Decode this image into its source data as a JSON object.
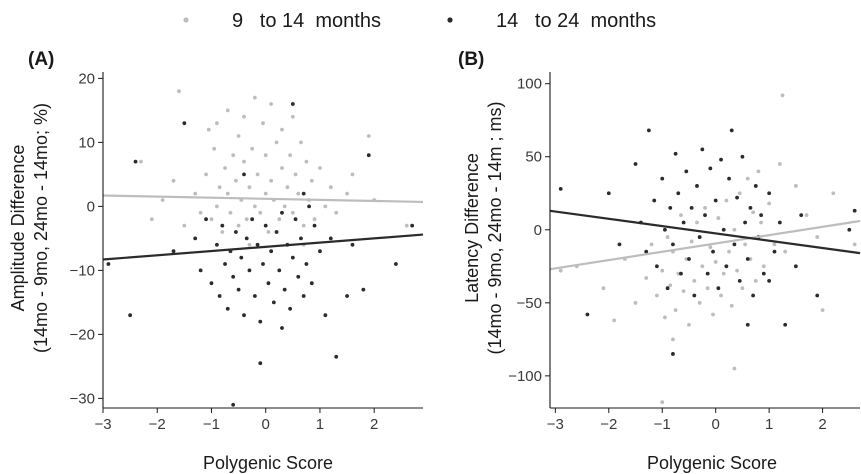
{
  "legend": {
    "items": [
      {
        "label": "9   to 14  months",
        "color": "#bdbdbd"
      },
      {
        "label": "14   to 24  months",
        "color": "#2b2b2b"
      }
    ]
  },
  "chart_data": [
    {
      "type": "scatter",
      "panel_label": "(A)",
      "xlabel": "Polygenic Score",
      "ylabel_lines": [
        "Amplitude Difference",
        "(14mo - 9mo, 24mo - 14mo; %)"
      ],
      "xlim": [
        -3,
        2.9
      ],
      "ylim": [
        -31.5,
        21
      ],
      "xticks": [
        -3,
        -2,
        -1,
        0,
        1,
        2
      ],
      "yticks": [
        -30,
        -20,
        -10,
        0,
        10,
        20
      ],
      "grid": false,
      "legend_position": "top",
      "series": [
        {
          "name": "9   to 14  months",
          "color": "#bdbdbd",
          "fit_line": {
            "x": [
              -3,
              2.9
            ],
            "y": [
              1.7,
              0.7
            ]
          },
          "points": [
            [
              -1.9,
              1
            ],
            [
              -1.7,
              4
            ],
            [
              -1.5,
              -3
            ],
            [
              -1.3,
              2
            ],
            [
              -1.2,
              -1
            ],
            [
              -1.1,
              5
            ],
            [
              -1.05,
              12
            ],
            [
              -1,
              -2
            ],
            [
              -0.95,
              9
            ],
            [
              -0.9,
              13
            ],
            [
              -0.9,
              0
            ],
            [
              -0.85,
              3
            ],
            [
              -0.8,
              -4
            ],
            [
              -0.75,
              6
            ],
            [
              -0.7,
              15
            ],
            [
              -0.7,
              2
            ],
            [
              -0.65,
              -1
            ],
            [
              -0.6,
              8
            ],
            [
              -0.55,
              4
            ],
            [
              -0.5,
              11
            ],
            [
              -0.5,
              -3
            ],
            [
              -0.45,
              1
            ],
            [
              -0.4,
              7
            ],
            [
              -0.4,
              14
            ],
            [
              -0.35,
              -2
            ],
            [
              -0.3,
              3
            ],
            [
              -0.25,
              9
            ],
            [
              -0.2,
              0
            ],
            [
              -0.2,
              17
            ],
            [
              -0.15,
              5
            ],
            [
              -0.1,
              -1
            ],
            [
              -0.05,
              13
            ],
            [
              0,
              2
            ],
            [
              0,
              8
            ],
            [
              0.05,
              -4
            ],
            [
              0.1,
              16
            ],
            [
              0.1,
              4
            ],
            [
              0.15,
              1
            ],
            [
              0.2,
              10
            ],
            [
              0.25,
              -2
            ],
            [
              0.3,
              6
            ],
            [
              0.3,
              12
            ],
            [
              0.35,
              0
            ],
            [
              0.4,
              3
            ],
            [
              0.45,
              8
            ],
            [
              0.5,
              -1
            ],
            [
              0.5,
              14
            ],
            [
              0.55,
              5
            ],
            [
              0.6,
              2
            ],
            [
              0.65,
              10
            ],
            [
              0.7,
              -3
            ],
            [
              0.75,
              7
            ],
            [
              0.8,
              1
            ],
            [
              0.85,
              4
            ],
            [
              0.9,
              -2
            ],
            [
              1,
              6
            ],
            [
              1.1,
              0
            ],
            [
              1.2,
              3
            ],
            [
              1.3,
              -1
            ],
            [
              1.5,
              2
            ],
            [
              1.6,
              5
            ],
            [
              1.9,
              11
            ],
            [
              2,
              1
            ],
            [
              -1.6,
              18
            ],
            [
              -2.1,
              -2
            ],
            [
              -0.3,
              -6
            ],
            [
              0.7,
              -6
            ],
            [
              -2.3,
              7
            ],
            [
              2.6,
              -3
            ]
          ]
        },
        {
          "name": "14   to 24  months",
          "color": "#2b2b2b",
          "fit_line": {
            "x": [
              -3,
              2.9
            ],
            "y": [
              -8.3,
              -4.4
            ]
          },
          "points": [
            [
              -2.9,
              -9
            ],
            [
              -2.5,
              -17
            ],
            [
              -2.4,
              7
            ],
            [
              -1.7,
              -7
            ],
            [
              -1.5,
              13
            ],
            [
              -1.3,
              -5
            ],
            [
              -1.2,
              -10
            ],
            [
              -1.1,
              -2
            ],
            [
              -1,
              -12
            ],
            [
              -0.9,
              -6
            ],
            [
              -0.85,
              -14
            ],
            [
              -0.8,
              -3
            ],
            [
              -0.75,
              -9
            ],
            [
              -0.7,
              -16
            ],
            [
              -0.65,
              -7
            ],
            [
              -0.6,
              -11
            ],
            [
              -0.55,
              -4
            ],
            [
              -0.5,
              -13
            ],
            [
              -0.45,
              -8
            ],
            [
              -0.4,
              -17
            ],
            [
              -0.35,
              -5
            ],
            [
              -0.3,
              -10
            ],
            [
              -0.25,
              -2
            ],
            [
              -0.2,
              -14
            ],
            [
              -0.15,
              -6
            ],
            [
              -0.1,
              -18
            ],
            [
              -0.05,
              -9
            ],
            [
              0,
              -3
            ],
            [
              0.05,
              -12
            ],
            [
              0.1,
              -7
            ],
            [
              0.15,
              -15
            ],
            [
              0.2,
              -4
            ],
            [
              0.25,
              -10
            ],
            [
              0.3,
              -1
            ],
            [
              0.35,
              -13
            ],
            [
              0.4,
              -6
            ],
            [
              0.45,
              -16
            ],
            [
              0.5,
              -8
            ],
            [
              0.55,
              -2
            ],
            [
              0.6,
              -11
            ],
            [
              0.65,
              -5
            ],
            [
              0.7,
              -14
            ],
            [
              0.75,
              -9
            ],
            [
              0.8,
              0
            ],
            [
              0.85,
              -12
            ],
            [
              0.9,
              -3
            ],
            [
              1,
              -7
            ],
            [
              1.1,
              -17
            ],
            [
              1.2,
              -5
            ],
            [
              1.3,
              -23.5
            ],
            [
              1.5,
              -14
            ],
            [
              1.6,
              -6
            ],
            [
              1.8,
              -13
            ],
            [
              1.9,
              8
            ],
            [
              2.4,
              -9
            ],
            [
              2.7,
              -3
            ],
            [
              -0.6,
              -31
            ],
            [
              -0.1,
              -24.5
            ],
            [
              0.5,
              16
            ],
            [
              0.7,
              2
            ],
            [
              -0.4,
              5
            ],
            [
              0.3,
              -19
            ]
          ]
        }
      ]
    },
    {
      "type": "scatter",
      "panel_label": "(B)",
      "xlabel": "Polygenic Score",
      "ylabel_lines": [
        "Latency Difference",
        "(14mo - 9mo, 24mo - 14m ; ms)"
      ],
      "xlim": [
        -3.1,
        2.7
      ],
      "ylim": [
        -122,
        108
      ],
      "xticks": [
        -3,
        -2,
        -1,
        0,
        1,
        2
      ],
      "yticks": [
        -100,
        -50,
        0,
        50,
        100
      ],
      "grid": false,
      "legend_position": "top",
      "series": [
        {
          "name": "9   to 14  months",
          "color": "#bdbdbd",
          "fit_line": {
            "x": [
              -3.1,
              2.7
            ],
            "y": [
              -27,
              6
            ]
          },
          "points": [
            [
              -2.9,
              -28
            ],
            [
              -2.6,
              -25
            ],
            [
              -2.1,
              -40
            ],
            [
              -1.9,
              -62
            ],
            [
              -1.7,
              -20
            ],
            [
              -1.5,
              -50
            ],
            [
              -1.3,
              -33
            ],
            [
              -1.2,
              -10
            ],
            [
              -1.1,
              -45
            ],
            [
              -1,
              -28
            ],
            [
              -0.95,
              -60
            ],
            [
              -0.9,
              -5
            ],
            [
              -0.85,
              -38
            ],
            [
              -0.8,
              -15
            ],
            [
              -0.75,
              -55
            ],
            [
              -0.7,
              -30
            ],
            [
              -0.65,
              10
            ],
            [
              -0.6,
              -42
            ],
            [
              -0.55,
              -20
            ],
            [
              -0.5,
              -65
            ],
            [
              -0.45,
              -8
            ],
            [
              -0.4,
              -35
            ],
            [
              -0.35,
              5
            ],
            [
              -0.3,
              -50
            ],
            [
              -0.25,
              -25
            ],
            [
              -0.2,
              15
            ],
            [
              -0.15,
              -40
            ],
            [
              -0.1,
              -12
            ],
            [
              -0.05,
              -58
            ],
            [
              0,
              -22
            ],
            [
              0.05,
              8
            ],
            [
              0.1,
              -45
            ],
            [
              0.15,
              -30
            ],
            [
              0.2,
              20
            ],
            [
              0.25,
              -15
            ],
            [
              0.3,
              -52
            ],
            [
              0.35,
              0
            ],
            [
              0.4,
              -28
            ],
            [
              0.45,
              25
            ],
            [
              0.5,
              -40
            ],
            [
              0.55,
              -10
            ],
            [
              0.6,
              35
            ],
            [
              0.65,
              -20
            ],
            [
              0.7,
              12
            ],
            [
              0.75,
              -35
            ],
            [
              0.8,
              40
            ],
            [
              0.85,
              5
            ],
            [
              0.9,
              -25
            ],
            [
              1,
              18
            ],
            [
              1.1,
              -10
            ],
            [
              1.2,
              45
            ],
            [
              1.25,
              92
            ],
            [
              1.3,
              -15
            ],
            [
              1.5,
              30
            ],
            [
              1.7,
              10
            ],
            [
              1.9,
              -5
            ],
            [
              2,
              -55
            ],
            [
              2.2,
              25
            ],
            [
              2.6,
              -10
            ],
            [
              -1,
              -118
            ],
            [
              0.35,
              -95
            ],
            [
              -0.8,
              -75
            ]
          ]
        },
        {
          "name": "14   to 24  months",
          "color": "#2b2b2b",
          "fit_line": {
            "x": [
              -3.1,
              2.7
            ],
            "y": [
              13,
              -16
            ]
          },
          "points": [
            [
              -2.9,
              28
            ],
            [
              -2.4,
              -58
            ],
            [
              -2,
              25
            ],
            [
              -1.8,
              -10
            ],
            [
              -1.5,
              45
            ],
            [
              -1.4,
              5
            ],
            [
              -1.3,
              -15
            ],
            [
              -1.25,
              68
            ],
            [
              -1.15,
              20
            ],
            [
              -1.1,
              -25
            ],
            [
              -1,
              35
            ],
            [
              -0.95,
              0
            ],
            [
              -0.9,
              -40
            ],
            [
              -0.85,
              15
            ],
            [
              -0.8,
              -10
            ],
            [
              -0.75,
              52
            ],
            [
              -0.7,
              25
            ],
            [
              -0.65,
              -30
            ],
            [
              -0.6,
              5
            ],
            [
              -0.55,
              40
            ],
            [
              -0.5,
              -20
            ],
            [
              -0.45,
              15
            ],
            [
              -0.4,
              -45
            ],
            [
              -0.35,
              30
            ],
            [
              -0.3,
              -5
            ],
            [
              -0.25,
              55
            ],
            [
              -0.2,
              10
            ],
            [
              -0.15,
              -30
            ],
            [
              -0.1,
              42
            ],
            [
              -0.05,
              -15
            ],
            [
              0,
              20
            ],
            [
              0.05,
              -40
            ],
            [
              0.1,
              48
            ],
            [
              0.15,
              0
            ],
            [
              0.2,
              -25
            ],
            [
              0.25,
              35
            ],
            [
              0.3,
              68
            ],
            [
              0.35,
              -10
            ],
            [
              0.4,
              22
            ],
            [
              0.45,
              -35
            ],
            [
              0.5,
              50
            ],
            [
              0.55,
              5
            ],
            [
              0.6,
              -20
            ],
            [
              0.65,
              15
            ],
            [
              0.7,
              -45
            ],
            [
              0.75,
              30
            ],
            [
              0.8,
              -5
            ],
            [
              0.85,
              10
            ],
            [
              0.9,
              -30
            ],
            [
              1,
              25
            ],
            [
              1.1,
              -15
            ],
            [
              1.2,
              5
            ],
            [
              1.3,
              -65
            ],
            [
              1.5,
              -25
            ],
            [
              1.6,
              10
            ],
            [
              1.9,
              -45
            ],
            [
              2.5,
              0
            ],
            [
              2.6,
              13
            ],
            [
              -0.8,
              -85
            ],
            [
              0.6,
              -65
            ],
            [
              1,
              -35
            ]
          ]
        }
      ]
    }
  ]
}
